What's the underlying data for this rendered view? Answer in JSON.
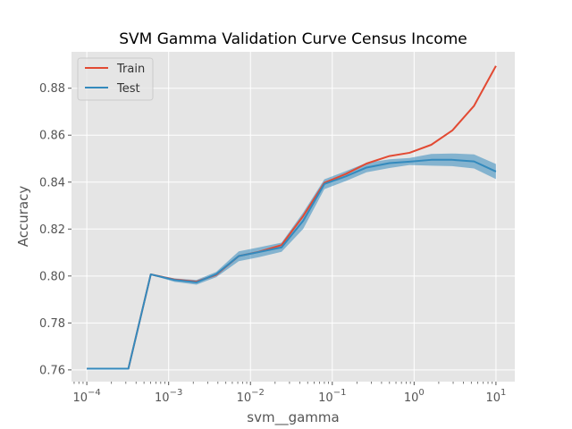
{
  "chart_data": {
    "type": "line",
    "title": "SVM Gamma Validation Curve Census Income",
    "xlabel": "svm__gamma",
    "ylabel": "Accuracy",
    "xscale": "log",
    "xlim": [
      6.5e-05,
      17
    ],
    "ylim": [
      0.755,
      0.8955
    ],
    "grid": true,
    "legend_position": "top-left",
    "x": [
      0.0001,
      0.000179,
      0.000322,
      0.000605,
      0.00118,
      0.00219,
      0.00382,
      0.00719,
      0.0127,
      0.024,
      0.044,
      0.08,
      0.147,
      0.262,
      0.5,
      0.88,
      1.62,
      2.93,
      5.4,
      10
    ],
    "series": [
      {
        "name": "Train",
        "color": "#E24A33",
        "values": [
          0.7605,
          0.7605,
          0.7605,
          0.8007,
          0.7985,
          0.7976,
          0.8005,
          0.8085,
          0.8103,
          0.8132,
          0.8255,
          0.8397,
          0.8435,
          0.8479,
          0.8511,
          0.8525,
          0.8559,
          0.862,
          0.8725,
          0.8895
        ]
      },
      {
        "name": "Test",
        "color": "#348ABD",
        "values": [
          0.7605,
          0.7605,
          0.7605,
          0.8007,
          0.7983,
          0.7973,
          0.8008,
          0.8085,
          0.8102,
          0.8122,
          0.8235,
          0.8392,
          0.8425,
          0.8462,
          0.8481,
          0.8487,
          0.8495,
          0.8495,
          0.8488,
          0.8445
        ],
        "band_lower": [
          0.7605,
          0.7605,
          0.7605,
          0.8005,
          0.7975,
          0.7963,
          0.7995,
          0.8063,
          0.808,
          0.8103,
          0.82,
          0.837,
          0.8405,
          0.8442,
          0.846,
          0.8473,
          0.847,
          0.8468,
          0.8458,
          0.8413
        ],
        "band_upper": [
          0.7605,
          0.7605,
          0.7605,
          0.8008,
          0.799,
          0.7983,
          0.8018,
          0.8105,
          0.8122,
          0.8142,
          0.827,
          0.8412,
          0.8447,
          0.8482,
          0.8497,
          0.8503,
          0.852,
          0.8522,
          0.8518,
          0.8477
        ]
      }
    ],
    "x_ticks": [
      {
        "value": 0.0001,
        "base": "10",
        "exp": "−4"
      },
      {
        "value": 0.001,
        "base": "10",
        "exp": "−3"
      },
      {
        "value": 0.01,
        "base": "10",
        "exp": "−2"
      },
      {
        "value": 0.1,
        "base": "10",
        "exp": "−1"
      },
      {
        "value": 1,
        "base": "10",
        "exp": "0"
      },
      {
        "value": 10,
        "base": "10",
        "exp": "1"
      }
    ],
    "y_ticks": [
      {
        "value": 0.76,
        "label": "0.76"
      },
      {
        "value": 0.78,
        "label": "0.78"
      },
      {
        "value": 0.8,
        "label": "0.80"
      },
      {
        "value": 0.82,
        "label": "0.82"
      },
      {
        "value": 0.84,
        "label": "0.84"
      },
      {
        "value": 0.86,
        "label": "0.86"
      },
      {
        "value": 0.88,
        "label": "0.88"
      }
    ],
    "colors": {
      "plot_background": "#E5E5E5",
      "grid": "#FFFFFF",
      "band_fill": "#348ABD"
    }
  }
}
